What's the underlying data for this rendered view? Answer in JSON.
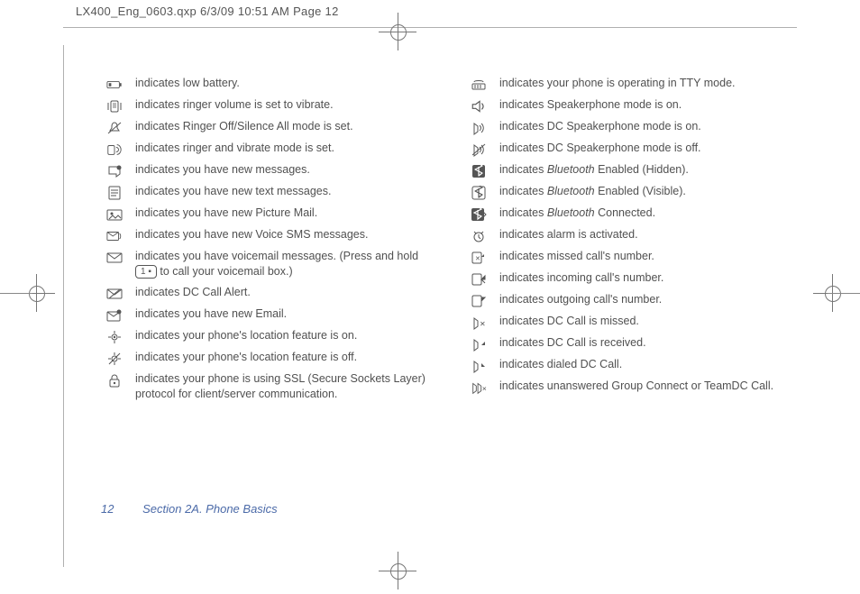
{
  "header": {
    "text": "LX400_Eng_0603.qxp  6/3/09  10:51 AM  Page 12"
  },
  "footer": {
    "page_number": "12",
    "section": "Section 2A. Phone Basics"
  },
  "colors": {
    "text": "#505050",
    "accent": "#4b6aa8",
    "icon": "#555555",
    "border": "#b0b0b0"
  },
  "key": {
    "label": "1"
  },
  "left_col": [
    {
      "icon": "battery-low-icon",
      "text": "indicates low battery."
    },
    {
      "icon": "vibrate-icon",
      "text": "indicates ringer volume is set to vibrate."
    },
    {
      "icon": "ringer-off-icon",
      "text": "indicates Ringer Off/Silence All mode is set."
    },
    {
      "icon": "ring-vibrate-icon",
      "text": "indicates ringer and vibrate mode is set."
    },
    {
      "icon": "new-message-icon",
      "text": "indicates you have new messages."
    },
    {
      "icon": "text-message-icon",
      "text": "indicates you have new text messages."
    },
    {
      "icon": "picture-mail-icon",
      "text": "indicates you have new Picture Mail."
    },
    {
      "icon": "voice-sms-icon",
      "text": "indicates you have new Voice SMS messages."
    },
    {
      "icon": "voicemail-icon",
      "text_pre": "indicates you have voicemail messages. (Press and hold ",
      "key": true,
      "text_post": " to call your voicemail box.)"
    },
    {
      "icon": "dc-alert-icon",
      "text": "indicates DC Call Alert."
    },
    {
      "icon": "new-email-icon",
      "text": "indicates you have new Email."
    },
    {
      "icon": "location-on-icon",
      "text": "indicates your phone's location feature is on."
    },
    {
      "icon": "location-off-icon",
      "text": "indicates your phone's location feature is off."
    },
    {
      "icon": "ssl-lock-icon",
      "text": "indicates your phone is using SSL (Secure Sockets Layer) protocol for client/server communication."
    }
  ],
  "right_col": [
    {
      "icon": "tty-icon",
      "text": "indicates your phone is operating in TTY mode."
    },
    {
      "icon": "speaker-on-icon",
      "text": "indicates Speakerphone mode is on."
    },
    {
      "icon": "dc-speaker-on-icon",
      "text": "indicates DC Speakerphone mode is on."
    },
    {
      "icon": "dc-speaker-off-icon",
      "text": "indicates DC Speakerphone mode is off."
    },
    {
      "icon": "bt-hidden-icon",
      "italic": "Bluetooth",
      "text_pre": "indicates ",
      "text_post": " Enabled (Hidden)."
    },
    {
      "icon": "bt-visible-icon",
      "italic": "Bluetooth",
      "text_pre": "indicates ",
      "text_post": " Enabled (Visible)."
    },
    {
      "icon": "bt-connected-icon",
      "italic": "Bluetooth",
      "text_pre": "indicates ",
      "text_post": " Connected."
    },
    {
      "icon": "alarm-icon",
      "text": "indicates alarm is activated."
    },
    {
      "icon": "missed-call-icon",
      "text": "indicates missed call's number."
    },
    {
      "icon": "incoming-call-icon",
      "text": "indicates incoming call's number."
    },
    {
      "icon": "outgoing-call-icon",
      "text": "indicates outgoing call's number."
    },
    {
      "icon": "dc-missed-icon",
      "text": "indicates DC Call is missed."
    },
    {
      "icon": "dc-received-icon",
      "text": "indicates DC Call is received."
    },
    {
      "icon": "dc-dialed-icon",
      "text": "indicates dialed DC Call."
    },
    {
      "icon": "group-unanswered-icon",
      "text": "indicates unanswered Group Connect or TeamDC Call."
    }
  ]
}
